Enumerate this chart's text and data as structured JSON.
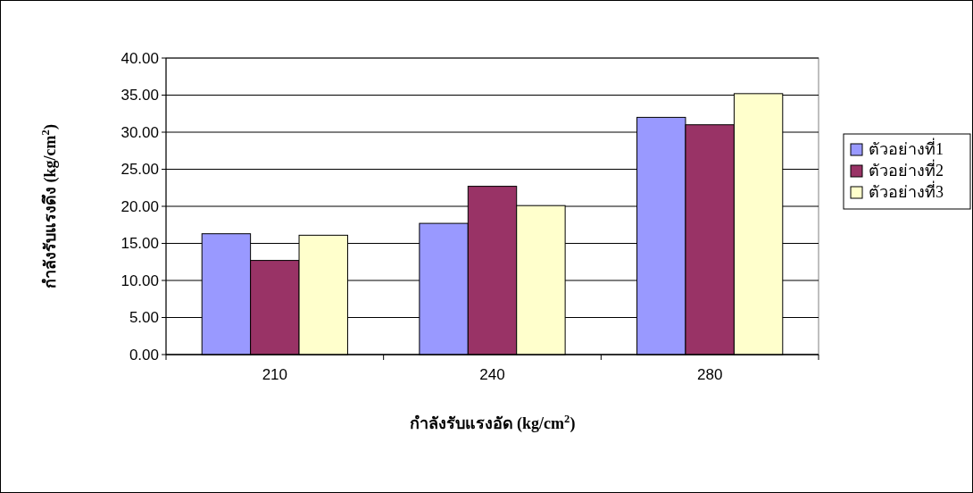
{
  "chart_data": {
    "type": "bar",
    "xlabel": "กำลังรับแรงอัด (kg/cm$^{2}$)",
    "ylabel": "กำลังรับแรงดึง (kg/cm$^{2}$)",
    "categories": [
      "210",
      "240",
      "280"
    ],
    "series": [
      {
        "name": "ตัวอย่างที่1",
        "color": "#9999ff",
        "values": [
          16.3,
          17.7,
          32.0
        ]
      },
      {
        "name": "ตัวอย่างที่2",
        "color": "#993366",
        "values": [
          12.7,
          22.7,
          31.0
        ]
      },
      {
        "name": "ตัวอย่างที่3",
        "color": "#ffffcc",
        "values": [
          16.1,
          20.1,
          35.2
        ]
      }
    ],
    "ylim": [
      0,
      40
    ],
    "yticks": [
      {
        "value": 0,
        "label": "0.00"
      },
      {
        "value": 5,
        "label": "5.00"
      },
      {
        "value": 10,
        "label": "10.00"
      },
      {
        "value": 15,
        "label": "15.00"
      },
      {
        "value": 20,
        "label": "20.00"
      },
      {
        "value": 25,
        "label": "25.00"
      },
      {
        "value": 30,
        "label": "30.00"
      },
      {
        "value": 35,
        "label": "35.00"
      },
      {
        "value": 40,
        "label": "40.00"
      }
    ],
    "grid": "y",
    "legend": "right"
  }
}
